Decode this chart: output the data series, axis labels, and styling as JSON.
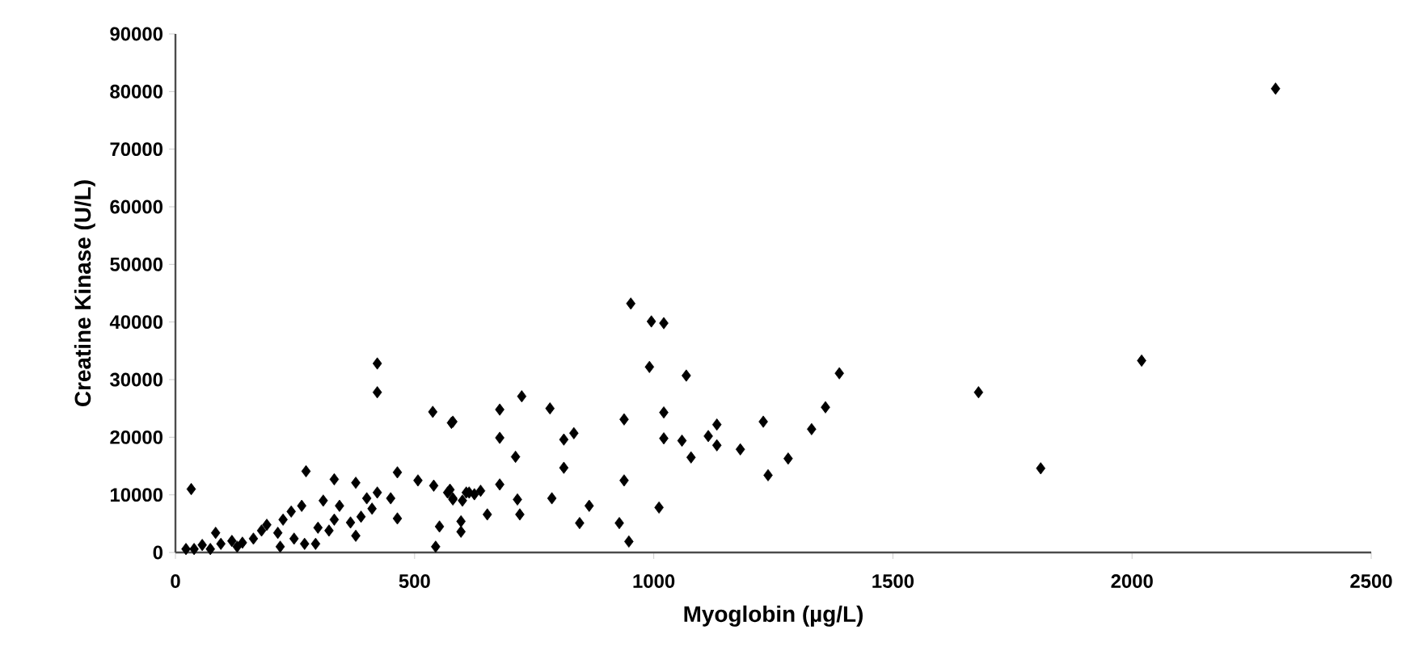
{
  "chart_data": {
    "type": "scatter",
    "xlabel": "Myoglobin (µg/L)",
    "ylabel": "Creatine Kinase (U/L)",
    "xlim": [
      0,
      2500
    ],
    "ylim": [
      0,
      90000
    ],
    "xticks": [
      0,
      500,
      1000,
      1500,
      2000,
      2500
    ],
    "yticks": [
      0,
      10000,
      20000,
      30000,
      40000,
      50000,
      60000,
      70000,
      80000,
      90000
    ],
    "grid": false,
    "marker": "diamond",
    "series": [
      {
        "color": "#000000",
        "x": [
          2300,
          2020,
          1809,
          1679,
          1388,
          1359,
          1330,
          1281,
          1239,
          1229,
          1181,
          1132,
          1132,
          1114,
          1078,
          1068,
          1059,
          1021,
          1021,
          1021,
          1011,
          995,
          991,
          952,
          938,
          938,
          928,
          948,
          845,
          865,
          787,
          812,
          833,
          812,
          783,
          724,
          678,
          678,
          711,
          678,
          715,
          720,
          652,
          580,
          597,
          597,
          608,
          625,
          638,
          580,
          538,
          577,
          33,
          273,
          332,
          377,
          464,
          507,
          540,
          569,
          580,
          614,
          552,
          544,
          464,
          450,
          422,
          411,
          400,
          388,
          377,
          366,
          343,
          332,
          309,
          321,
          298,
          293,
          270,
          248,
          264,
          242,
          225,
          214,
          219,
          191,
          180,
          163,
          140,
          118,
          84,
          95,
          56,
          39,
          22,
          129,
          73,
          422,
          422,
          574,
          600
        ],
        "values": [
          80500,
          33300,
          14600,
          27800,
          31100,
          25200,
          21400,
          16300,
          13400,
          22700,
          17900,
          22200,
          18600,
          20200,
          16500,
          30700,
          19400,
          24300,
          19800,
          39800,
          7800,
          40100,
          32200,
          43200,
          23100,
          12500,
          5100,
          1900,
          5100,
          8100,
          9400,
          14700,
          20700,
          19600,
          25000,
          27100,
          24800,
          19900,
          16600,
          11800,
          9200,
          6600,
          6600,
          22700,
          5400,
          3600,
          10400,
          10100,
          10700,
          9400,
          24400,
          22500,
          11000,
          14100,
          12700,
          12100,
          13900,
          12500,
          11600,
          10400,
          9200,
          10400,
          4500,
          1000,
          5900,
          9400,
          10400,
          7600,
          9400,
          6200,
          2900,
          5200,
          8100,
          5700,
          9000,
          3800,
          4300,
          1500,
          1500,
          2400,
          8100,
          7100,
          5700,
          3400,
          1000,
          4800,
          3800,
          2400,
          1700,
          2000,
          3400,
          1500,
          1300,
          600,
          600,
          1000,
          600,
          32800,
          27800,
          10900,
          9000
        ]
      }
    ]
  }
}
